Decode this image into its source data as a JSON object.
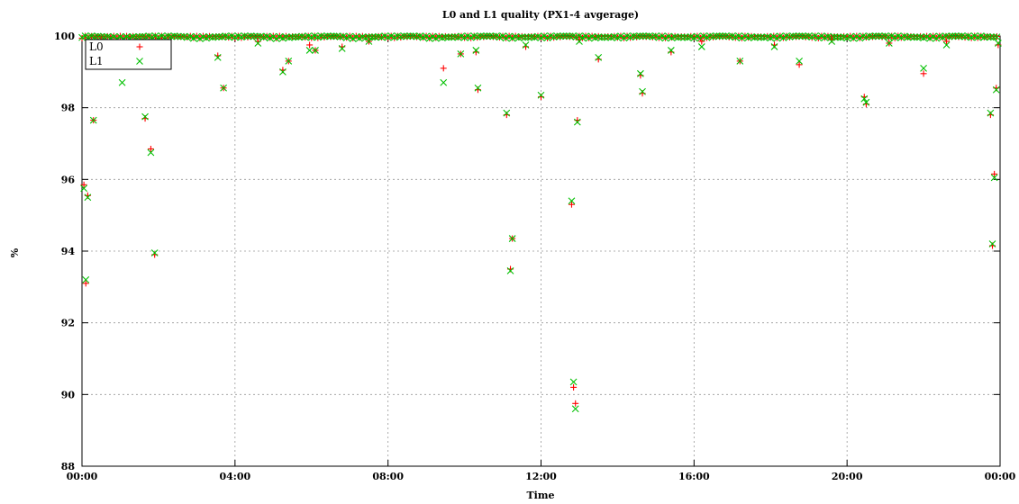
{
  "chart_data": {
    "type": "scatter",
    "title": "L0 and L1 quality (PX1-4 avgerage)",
    "xlabel": "Time",
    "ylabel": "%",
    "xlim": [
      0,
      24
    ],
    "ylim": [
      88,
      100
    ],
    "xticks": [
      0,
      4,
      8,
      12,
      16,
      20,
      24
    ],
    "xtick_labels": [
      "00:00",
      "04:00",
      "08:00",
      "12:00",
      "16:00",
      "20:00",
      "00:00"
    ],
    "yticks": [
      88,
      90,
      92,
      94,
      96,
      98,
      100
    ],
    "ytick_labels": [
      "88",
      "90",
      "92",
      "94",
      "96",
      "98",
      "100"
    ],
    "grid": true,
    "legend_position": "top-left",
    "series": [
      {
        "name": "L0",
        "marker": "+",
        "color": "#ff0000",
        "x": [
          0.05,
          0.1,
          0.15,
          0.3,
          1.05,
          1.55,
          1.65,
          1.8,
          1.9,
          3.55,
          3.7,
          5.25,
          5.95,
          9.45,
          10.3,
          10.35,
          11.1,
          11.2,
          11.25,
          12.0,
          12.8,
          12.85,
          12.9,
          12.95,
          13.0,
          14.6,
          14.65,
          18.75,
          20.45,
          20.5,
          22.0,
          23.75,
          23.8,
          23.85,
          23.9,
          23.95,
          0.5,
          2.2,
          4.6,
          5.4,
          6.1,
          6.8,
          7.5,
          9.9,
          11.6,
          13.5,
          15.4,
          16.2,
          17.2,
          18.1,
          19.6,
          21.1,
          22.6
        ],
        "y": [
          95.85,
          93.1,
          95.55,
          97.65,
          99.55,
          99.65,
          97.7,
          96.85,
          93.9,
          99.45,
          98.55,
          99.05,
          99.75,
          99.1,
          99.55,
          98.5,
          97.8,
          93.5,
          94.35,
          98.3,
          95.3,
          90.2,
          89.75,
          97.65,
          99.9,
          98.9,
          98.4,
          99.2,
          98.3,
          98.1,
          98.95,
          97.8,
          94.15,
          96.15,
          98.55,
          99.75,
          99.9,
          99.75,
          99.85,
          99.3,
          99.6,
          99.7,
          99.85,
          99.5,
          99.7,
          99.35,
          99.55,
          99.85,
          99.3,
          99.75,
          99.9,
          99.8,
          99.85
        ]
      },
      {
        "name": "L1",
        "marker": "x",
        "color": "#00c000",
        "x": [
          0.05,
          0.1,
          0.15,
          0.3,
          1.05,
          1.55,
          1.65,
          1.8,
          1.9,
          3.55,
          3.7,
          5.25,
          5.95,
          9.45,
          10.3,
          10.35,
          11.1,
          11.2,
          11.25,
          12.0,
          12.8,
          12.85,
          12.9,
          12.95,
          13.0,
          14.6,
          14.65,
          18.75,
          20.45,
          20.5,
          22.0,
          23.75,
          23.8,
          23.85,
          23.9,
          23.95,
          0.5,
          2.2,
          4.6,
          5.4,
          6.1,
          6.8,
          7.5,
          9.9,
          11.6,
          13.5,
          15.4,
          16.2,
          17.2,
          18.1,
          19.6,
          21.1,
          22.6
        ],
        "y": [
          95.75,
          93.2,
          95.5,
          97.65,
          98.7,
          99.3,
          97.75,
          96.75,
          93.95,
          99.4,
          98.55,
          99.0,
          99.6,
          98.7,
          99.6,
          98.55,
          97.85,
          93.45,
          94.35,
          98.35,
          95.4,
          90.35,
          89.6,
          97.6,
          99.85,
          98.95,
          98.45,
          99.3,
          98.25,
          98.15,
          99.1,
          97.85,
          94.2,
          96.05,
          98.5,
          99.8,
          99.7,
          99.65,
          99.8,
          99.3,
          99.6,
          99.65,
          99.85,
          99.5,
          99.75,
          99.4,
          99.6,
          99.7,
          99.3,
          99.7,
          99.85,
          99.8,
          99.75
        ]
      }
    ]
  }
}
